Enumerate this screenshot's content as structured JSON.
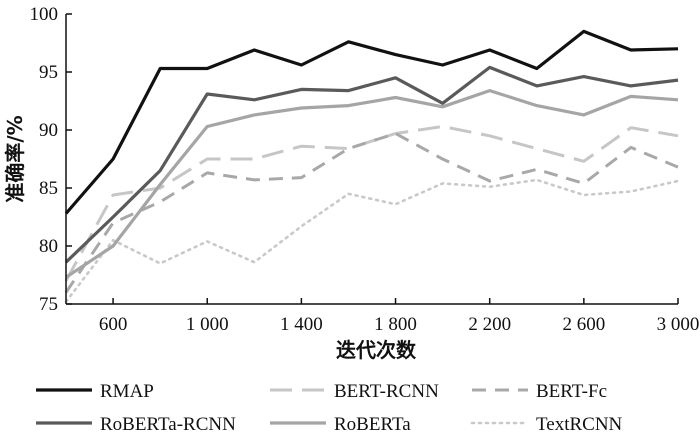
{
  "chart_data": {
    "type": "line",
    "xlabel": "迭代次数",
    "ylabel": "准确率/%",
    "xlim": [
      400,
      3000
    ],
    "ylim": [
      75,
      100
    ],
    "x_ticks": [
      600,
      1000,
      1400,
      1800,
      2200,
      2600,
      3000
    ],
    "x_tick_labels": [
      "600",
      "1 000",
      "1 400",
      "1 800",
      "2 200",
      "2 600",
      "3 000"
    ],
    "y_ticks": [
      75,
      80,
      85,
      90,
      95,
      100
    ],
    "y_tick_labels": [
      "75",
      "80",
      "85",
      "90",
      "95",
      "100"
    ],
    "grid": false,
    "legend_position": "bottom",
    "x": [
      400,
      600,
      800,
      1000,
      1200,
      1400,
      1600,
      1800,
      2000,
      2200,
      2400,
      2600,
      2800,
      3000
    ],
    "series": [
      {
        "name": "RMAP",
        "color": "#111111",
        "dash": "solid",
        "width": 3.2,
        "values": [
          82.8,
          87.5,
          95.3,
          95.3,
          96.9,
          95.6,
          97.6,
          96.5,
          95.6,
          96.9,
          95.3,
          98.5,
          96.9,
          97.0
        ]
      },
      {
        "name": "BERT-RCNN",
        "color": "#c6c6c6",
        "dash": "long-dash",
        "width": 3.0,
        "values": [
          77.0,
          84.4,
          85.0,
          87.5,
          87.5,
          88.6,
          88.4,
          89.7,
          90.3,
          89.5,
          88.4,
          87.3,
          90.2,
          89.5
        ]
      },
      {
        "name": "BERT-Fc",
        "color": "#a8a8a8",
        "dash": "dash",
        "width": 3.0,
        "values": [
          76.0,
          82.0,
          83.8,
          86.3,
          85.7,
          85.9,
          88.4,
          89.7,
          87.5,
          85.6,
          86.6,
          85.4,
          88.5,
          86.8
        ]
      },
      {
        "name": "RoBERTa-RCNN",
        "color": "#5a5a5a",
        "dash": "solid",
        "width": 3.2,
        "values": [
          78.6,
          82.5,
          86.5,
          93.1,
          92.6,
          93.5,
          93.4,
          94.5,
          92.3,
          95.4,
          93.8,
          94.6,
          93.8,
          94.3
        ]
      },
      {
        "name": "RoBERTa",
        "color": "#a5a5a5",
        "dash": "solid",
        "width": 3.2,
        "values": [
          77.3,
          80.0,
          85.3,
          90.3,
          91.3,
          91.9,
          92.1,
          92.8,
          92.0,
          93.4,
          92.1,
          91.3,
          92.9,
          92.6
        ]
      },
      {
        "name": "TextRCNN",
        "color": "#c9c9c9",
        "dash": "dot",
        "width": 2.6,
        "values": [
          75.2,
          80.5,
          78.5,
          80.4,
          78.6,
          81.7,
          84.5,
          83.6,
          85.4,
          85.1,
          85.7,
          84.4,
          84.7,
          85.6
        ]
      }
    ]
  }
}
